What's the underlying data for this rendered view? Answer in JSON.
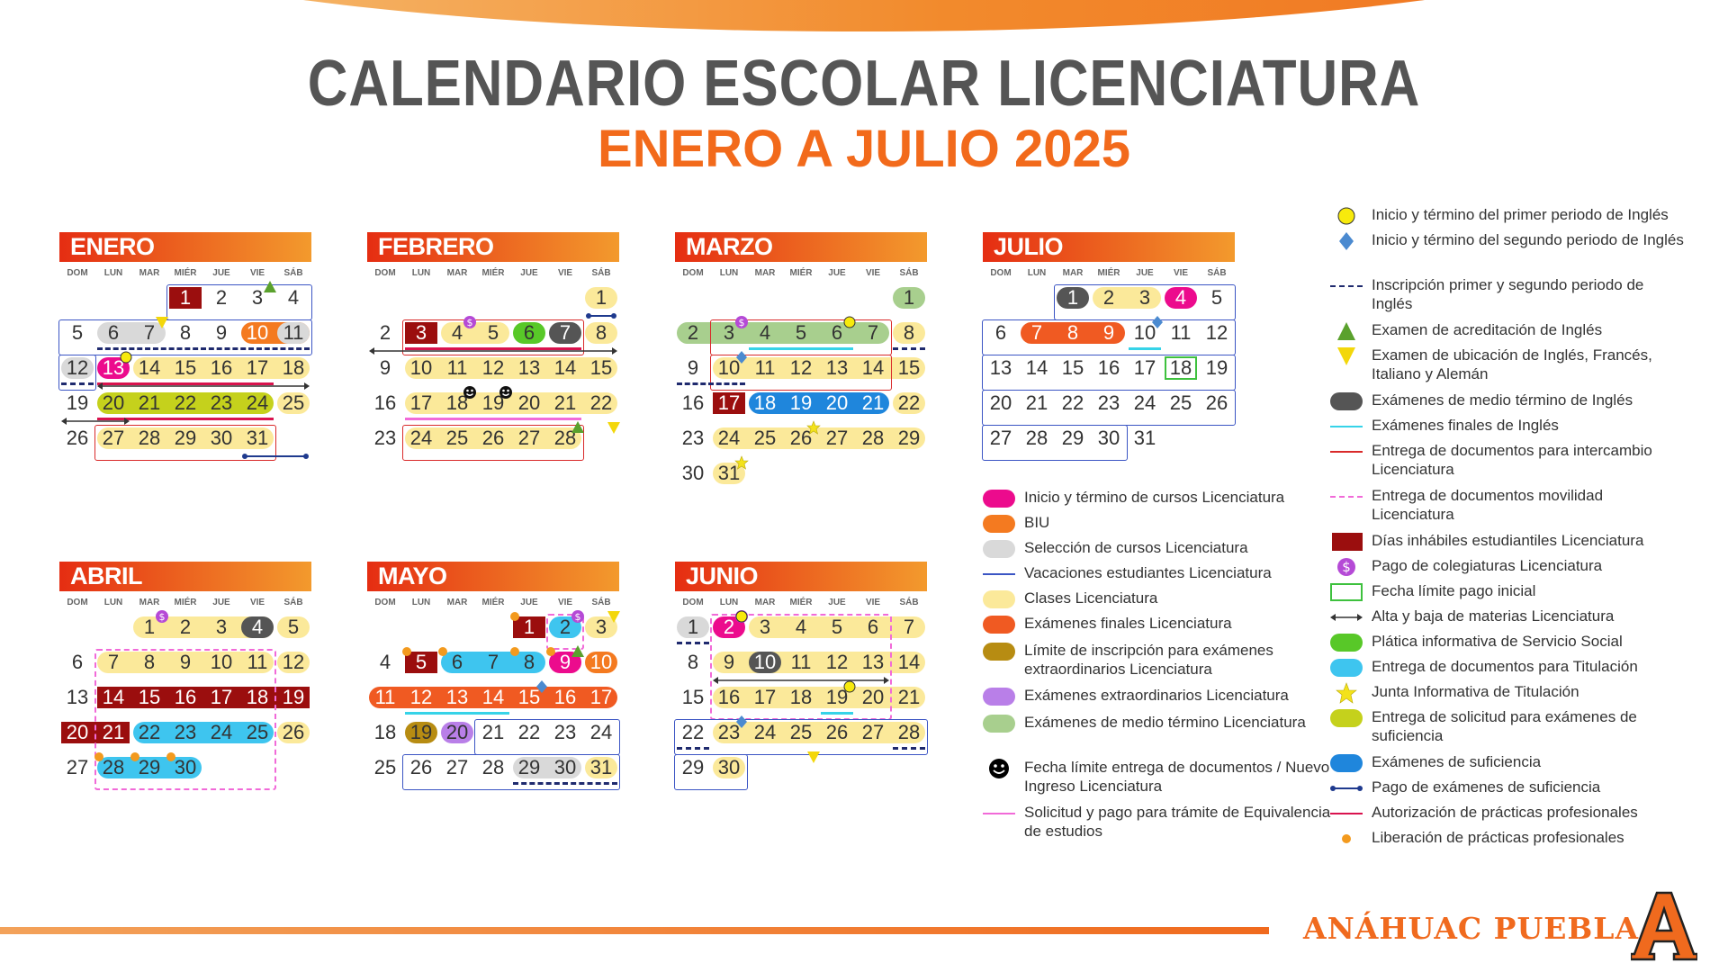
{
  "title": "CALENDARIO ESCOLAR LICENCIATURA",
  "subtitle": "ENERO A JULIO 2025",
  "dow": [
    "DOM",
    "LUN",
    "MAR",
    "MIÉR",
    "JUE",
    "VIE",
    "SÁB"
  ],
  "brand": "ANÁHUAC PUEBLA",
  "logo_letter": "A",
  "months": [
    {
      "name": "ENERO",
      "start": 3,
      "days": 31
    },
    {
      "name": "FEBRERO",
      "start": 6,
      "days": 28
    },
    {
      "name": "MARZO",
      "start": 6,
      "days": 31
    },
    {
      "name": "JULIO",
      "start": 2,
      "days": 31
    },
    {
      "name": "ABRIL",
      "start": 2,
      "days": 30
    },
    {
      "name": "MAYO",
      "start": 4,
      "days": 31
    },
    {
      "name": "JUNIO",
      "start": 0,
      "days": 30
    }
  ],
  "legend_left": [
    {
      "icon": "pill",
      "color": "#ec0b8d",
      "label": "Inicio y término de cursos Licenciatura"
    },
    {
      "icon": "pill",
      "color": "#f47a20",
      "label": "BIU"
    },
    {
      "icon": "pill",
      "color": "#d9d9d9",
      "label": "Selección de cursos Licenciatura"
    },
    {
      "icon": "line",
      "color": "#3b55c4",
      "label": "Vacaciones estudiantes Licenciatura"
    },
    {
      "icon": "pill",
      "color": "#fbe99a",
      "label": "Clases Licenciatura"
    },
    {
      "icon": "pill",
      "color": "#f05a22",
      "label": "Exámenes finales Licenciatura"
    },
    {
      "icon": "pill",
      "color": "#b78c12",
      "label": "Límite de inscripción para exámenes extraordinarios Licenciatura"
    },
    {
      "icon": "pill",
      "color": "#b97fe8",
      "label": "Exámenes extraordinarios Licenciatura"
    },
    {
      "icon": "pill",
      "color": "#a8cf8e",
      "label": "Exámenes de medio término Licenciatura"
    },
    {
      "icon": "smiley",
      "color": "#000000",
      "label": "Fecha límite entrega de documentos / Nuevo Ingreso Licenciatura"
    },
    {
      "icon": "line",
      "color": "#f16ad8",
      "label": "Solicitud y pago para trámite de Equivalencia de estudios"
    }
  ],
  "legend_right": [
    {
      "icon": "circle",
      "color": "#f7ea0c",
      "label": "Inicio y término del primer periodo de Inglés"
    },
    {
      "icon": "diamond",
      "color": "#4b8ad0",
      "label": "Inicio y término del segundo periodo de Inglés"
    },
    {
      "icon": "dash",
      "color": "#1f2a6e",
      "label": "Inscripción primer y segundo periodo de Inglés"
    },
    {
      "icon": "triangle",
      "color": "#5aa12d",
      "label": "Examen de acreditación de Inglés"
    },
    {
      "icon": "invtriangle",
      "color": "#f3d70b",
      "label": "Examen de ubicación de Inglés, Francés, Italiano y Alemán"
    },
    {
      "icon": "pill",
      "color": "#555555",
      "label": "Exámenes de medio término de Inglés"
    },
    {
      "icon": "line",
      "color": "#36d3e8",
      "label": "Exámenes finales de Inglés"
    },
    {
      "icon": "line",
      "color": "#d92a2a",
      "label": "Entrega de documentos para intercambio Licenciatura"
    },
    {
      "icon": "dash",
      "color": "#f16ad8",
      "label": "Entrega de documentos movilidad Licenciatura"
    },
    {
      "icon": "square",
      "color": "#9b0e0e",
      "label": "Días inhábiles estudiantiles Licenciatura"
    },
    {
      "icon": "dollar",
      "color": "#b54ad6",
      "label": "Pago de colegiaturas Licenciatura"
    },
    {
      "icon": "greenbox",
      "color": "#3ec13e",
      "label": "Fecha límite pago inicial"
    },
    {
      "icon": "arrow",
      "color": "#333333",
      "label": "Alta y baja de materias Licenciatura"
    },
    {
      "icon": "pill",
      "color": "#58c828",
      "label": "Plática informativa de Servicio Social"
    },
    {
      "icon": "pill",
      "color": "#3ec5ef",
      "label": "Entrega de documentos para Titulación"
    },
    {
      "icon": "star",
      "color": "#f3e21b",
      "label": "Junta Informativa de Titulación"
    },
    {
      "icon": "pill",
      "color": "#c5d11c",
      "label": "Entrega de solicitud para exámenes de suficiencia"
    },
    {
      "icon": "pill",
      "color": "#1f86dc",
      "label": "Exámenes de suficiencia"
    },
    {
      "icon": "dotline",
      "color": "#1f3a8e",
      "label": "Pago de exámenes de suficiencia"
    },
    {
      "icon": "line",
      "color": "#d9134e",
      "label": "Autorización de prácticas profesionales"
    },
    {
      "icon": "smalldot",
      "color": "#f39a1e",
      "label": "Liberación de prácticas profesionales"
    }
  ],
  "colors": {
    "accent": "#f26a1b",
    "title": "#555555"
  }
}
